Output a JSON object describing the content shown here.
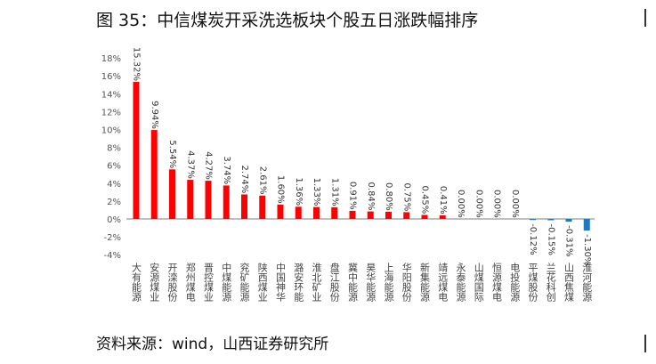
{
  "header": {
    "title": "图 35：中信煤炭开采洗选板块个股五日涨跌幅排序"
  },
  "footer": {
    "source": "资料来源：wind，山西证券研究所"
  },
  "colors": {
    "positive": "#ff0000",
    "negative": "#1f78c1",
    "axis": "#bfbfbf"
  },
  "chart_data": {
    "type": "bar",
    "title": "",
    "xlabel": "",
    "ylabel": "",
    "ylim": [
      -4,
      18
    ],
    "yticks": [
      18,
      16,
      14,
      12,
      10,
      8,
      6,
      4,
      2,
      0,
      -2,
      -4
    ],
    "ytick_labels": [
      "18%",
      "16%",
      "14%",
      "12%",
      "10%",
      "8%",
      "6%",
      "4%",
      "2%",
      "0%",
      "-2%",
      "-4%"
    ],
    "categories": [
      "大有能源",
      "安源煤业",
      "开滦股份",
      "郑州煤电",
      "晋控煤业",
      "中煤能源",
      "兖矿能源",
      "陕西煤业",
      "中国神华",
      "潞安环能",
      "淮北矿业",
      "盘江股份",
      "冀中能源",
      "昊华能源",
      "上海能源",
      "华阳股份",
      "新集能源",
      "靖远煤电",
      "永泰能源",
      "山煤国际",
      "恒源煤电",
      "电投能源",
      "平煤股份",
      "兰花科创",
      "山西焦煤",
      "淮河能源"
    ],
    "values": [
      15.32,
      9.94,
      5.54,
      4.37,
      4.27,
      3.74,
      2.74,
      2.61,
      1.6,
      1.36,
      1.33,
      1.31,
      0.91,
      0.84,
      0.8,
      0.75,
      0.45,
      0.41,
      0.0,
      0.0,
      0.0,
      0.0,
      -0.12,
      -0.15,
      -0.31,
      -1.3
    ],
    "data_labels": [
      "15.32%",
      "9.94%",
      "5.54%",
      "4.37%",
      "4.27%",
      "3.74%",
      "2.74%",
      "2.61%",
      "1.60%",
      "1.36%",
      "1.33%",
      "1.31%",
      "0.91%",
      "0.84%",
      "0.80%",
      "0.75%",
      "0.45%",
      "0.41%",
      "0.00%",
      "0.00%",
      "0.00%",
      "0.00%",
      "-0.12%",
      "-0.15%",
      "-0.31%",
      "-1.30%"
    ],
    "grid": false,
    "legend": "none"
  }
}
